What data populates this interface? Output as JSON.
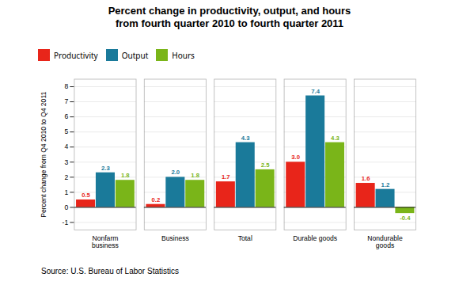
{
  "chart_data": {
    "type": "bar",
    "title": "Percent change in productivity, output, and hours\nfrom fourth quarter 2010 to fourth quarter 2011",
    "categories": [
      "Nonfarm\nbusiness",
      "Business",
      "Total",
      "Durable goods",
      "Nondurable\ngoods"
    ],
    "series": [
      {
        "name": "Productivity",
        "color": "#e8251a",
        "values": [
          0.5,
          0.2,
          1.7,
          3.0,
          1.6
        ],
        "value_labels": [
          "0.5",
          "0.2",
          "1.7",
          "3.0",
          "1.6"
        ]
      },
      {
        "name": "Output",
        "color": "#1a7a9a",
        "values": [
          2.3,
          2.0,
          4.3,
          7.4,
          1.2
        ],
        "value_labels": [
          "2.3",
          "2.0",
          "4.3",
          "7.4",
          "1.2"
        ]
      },
      {
        "name": "Hours",
        "color": "#7ab519",
        "values": [
          1.8,
          1.8,
          2.5,
          4.3,
          -0.4
        ],
        "value_labels": [
          "1.8",
          "1.8",
          "2.5",
          "4.3",
          "-0.4"
        ]
      }
    ],
    "ylabel": "Percent change from Q4 2010 to Q4 2011",
    "ylim": [
      -1.5,
      8.5
    ],
    "yticks": [
      -1,
      0,
      1,
      2,
      3,
      4,
      5,
      6,
      7,
      8
    ],
    "grid": true,
    "legend": "upper left",
    "data_labels": true,
    "source": "Source: U.S. Bureau of Labor Statistics"
  }
}
